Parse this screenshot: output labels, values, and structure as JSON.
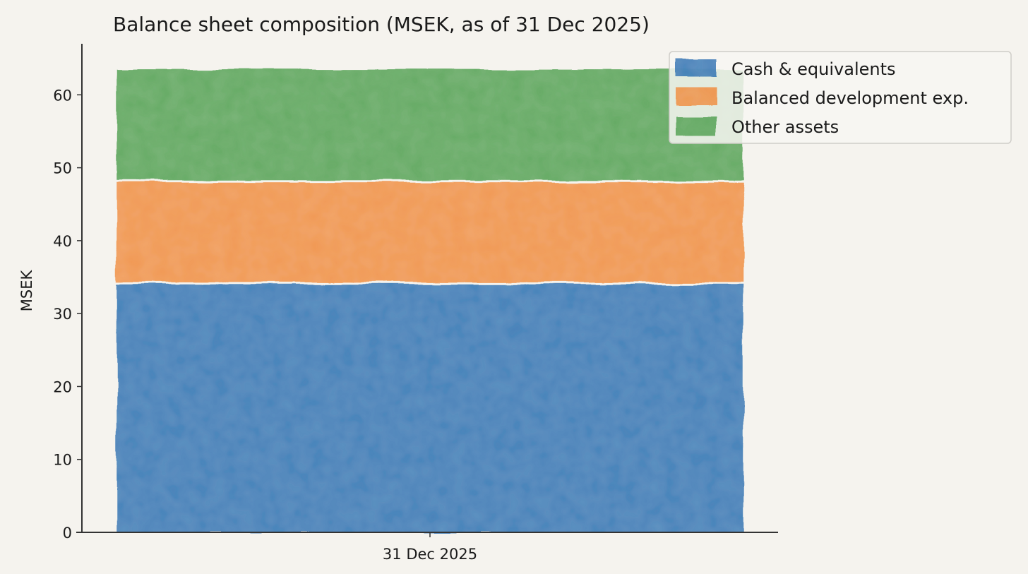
{
  "chart_data": {
    "type": "bar",
    "stacked": true,
    "title": "Balance sheet composition (MSEK, as of 31 Dec 2025)",
    "xlabel": "",
    "ylabel": "MSEK",
    "categories": [
      "31 Dec 2025"
    ],
    "ylim": [
      0,
      67
    ],
    "yticks": [
      0,
      10,
      20,
      30,
      40,
      50,
      60
    ],
    "grid": false,
    "legend_position": "top-right",
    "series": [
      {
        "name": "Cash & equivalents",
        "values": [
          34
        ],
        "color": "#2f6fb0"
      },
      {
        "name": "Balanced development exp.",
        "values": [
          14
        ],
        "color": "#f0893a"
      },
      {
        "name": "Other assets",
        "values": [
          15.5
        ],
        "color": "#4f9e4f"
      }
    ]
  }
}
